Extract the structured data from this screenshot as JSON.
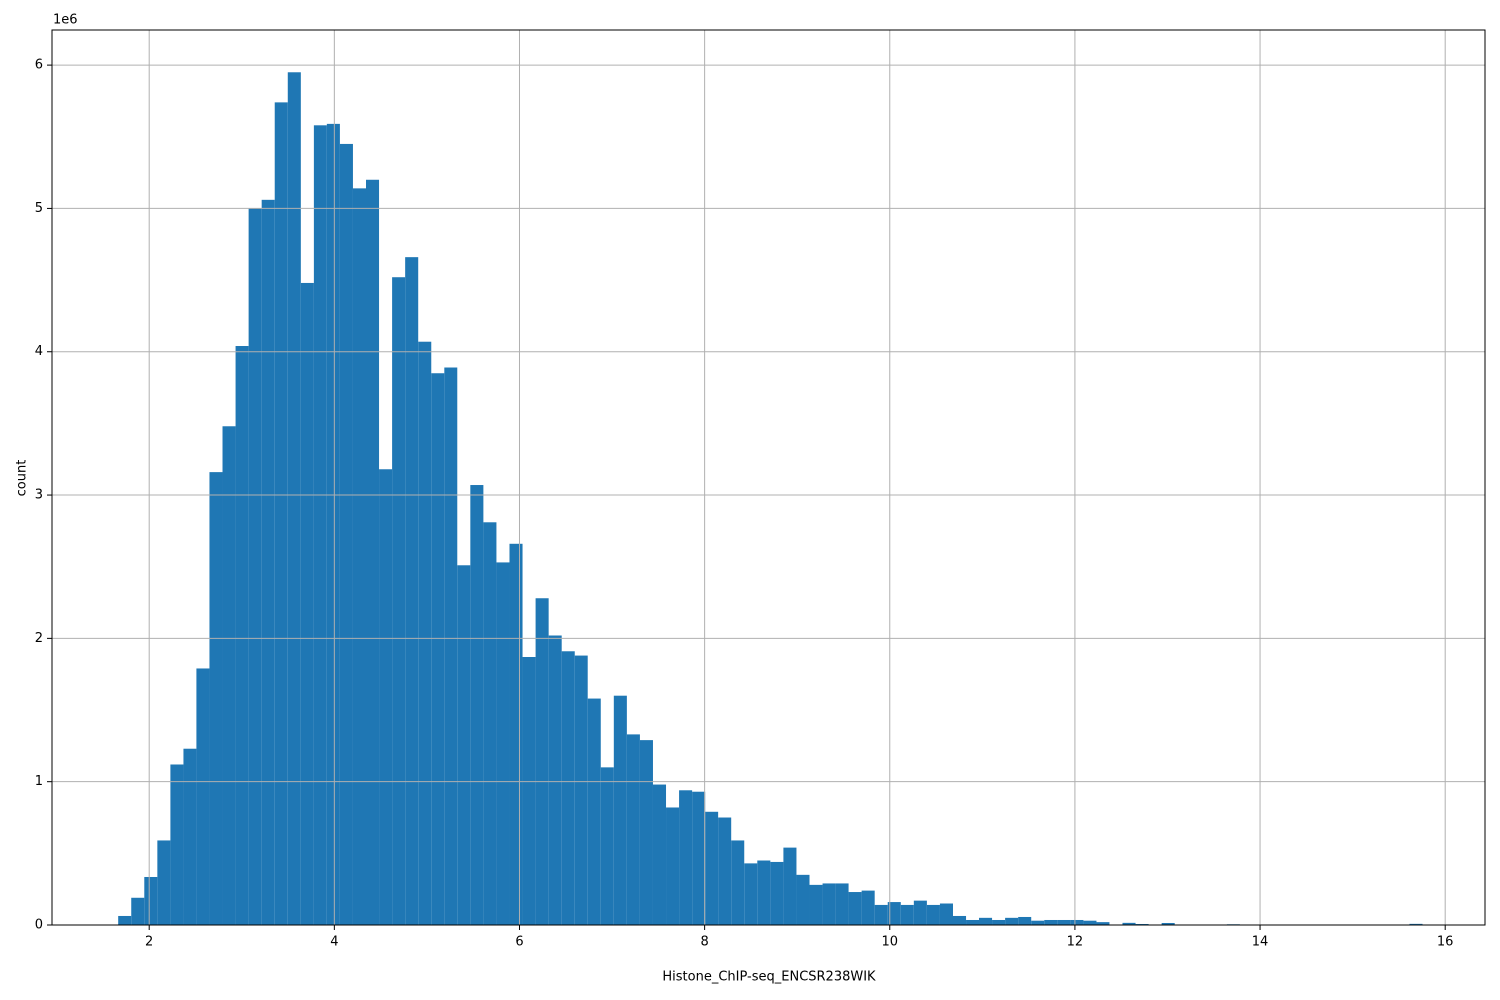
{
  "chart_data": {
    "type": "histogram",
    "x_label": "Histone_ChIP-seq_ENCSR238WIK",
    "y_label": "count",
    "y_offset_label": "1e6",
    "color": "#1f77b4",
    "grid": true,
    "xlim": [
      0.95,
      16.43
    ],
    "ylim": [
      0,
      6245000
    ],
    "xticks": [
      2,
      4,
      6,
      8,
      10,
      12,
      14,
      16
    ],
    "yticks": [
      0,
      {
        "value": 1000000,
        "label": "1"
      },
      {
        "value": 2000000,
        "label": "2"
      },
      {
        "value": 3000000,
        "label": "3"
      },
      {
        "value": 4000000,
        "label": "4"
      },
      {
        "value": 5000000,
        "label": "5"
      },
      {
        "value": 6000000,
        "label": "6"
      }
    ],
    "bins": [
      1.665,
      1.806,
      1.947,
      2.088,
      2.229,
      2.37,
      2.51,
      2.651,
      2.792,
      2.933,
      3.074,
      3.215,
      3.356,
      3.497,
      3.638,
      3.779,
      3.919,
      4.06,
      4.201,
      4.342,
      4.483,
      4.624,
      4.765,
      4.906,
      5.047,
      5.188,
      5.328,
      5.469,
      5.61,
      5.751,
      5.892,
      6.033,
      6.174,
      6.315,
      6.456,
      6.597,
      6.737,
      6.878,
      7.019,
      7.16,
      7.301,
      7.442,
      7.583,
      7.724,
      7.865,
      8.006,
      8.146,
      8.287,
      8.428,
      8.569,
      8.71,
      8.851,
      8.992,
      9.133,
      9.274,
      9.415,
      9.555,
      9.696,
      9.837,
      9.978,
      10.119,
      10.26,
      10.401,
      10.542,
      10.683,
      10.824,
      10.964,
      11.105,
      11.246,
      11.387,
      11.528,
      11.669,
      11.81,
      11.951,
      12.092,
      12.233,
      12.373,
      12.514,
      12.655,
      12.796,
      12.937,
      13.078,
      13.219,
      13.36,
      13.501,
      13.642,
      13.782,
      13.923,
      14.064,
      14.205,
      14.346,
      14.487,
      14.628,
      14.769,
      14.91,
      15.051,
      15.191,
      15.332,
      15.473,
      15.614,
      15.755
    ],
    "counts": [
      63000,
      190000,
      335000,
      590000,
      1120000,
      1230000,
      1790000,
      3160000,
      3480000,
      4040000,
      5000000,
      5060000,
      5740000,
      5950000,
      4480000,
      5580000,
      5590000,
      5450000,
      5140000,
      5200000,
      3180000,
      4520000,
      4660000,
      4070000,
      3850000,
      3890000,
      2510000,
      3070000,
      2810000,
      2530000,
      2660000,
      1870000,
      2280000,
      2020000,
      1910000,
      1880000,
      1580000,
      1100000,
      1600000,
      1330000,
      1290000,
      980000,
      820000,
      940000,
      930000,
      790000,
      750000,
      590000,
      430000,
      450000,
      440000,
      540000,
      350000,
      280000,
      290000,
      290000,
      230000,
      240000,
      140000,
      160000,
      140000,
      170000,
      140000,
      150000,
      63000,
      35000,
      50000,
      35000,
      50000,
      56000,
      30000,
      35000,
      35000,
      35000,
      30000,
      20000,
      3000,
      15000,
      7000,
      2000,
      14000,
      0,
      0,
      0,
      0,
      5000,
      0,
      0,
      0,
      0,
      0,
      0,
      0,
      0,
      0,
      0,
      0,
      0,
      0,
      8000
    ]
  }
}
